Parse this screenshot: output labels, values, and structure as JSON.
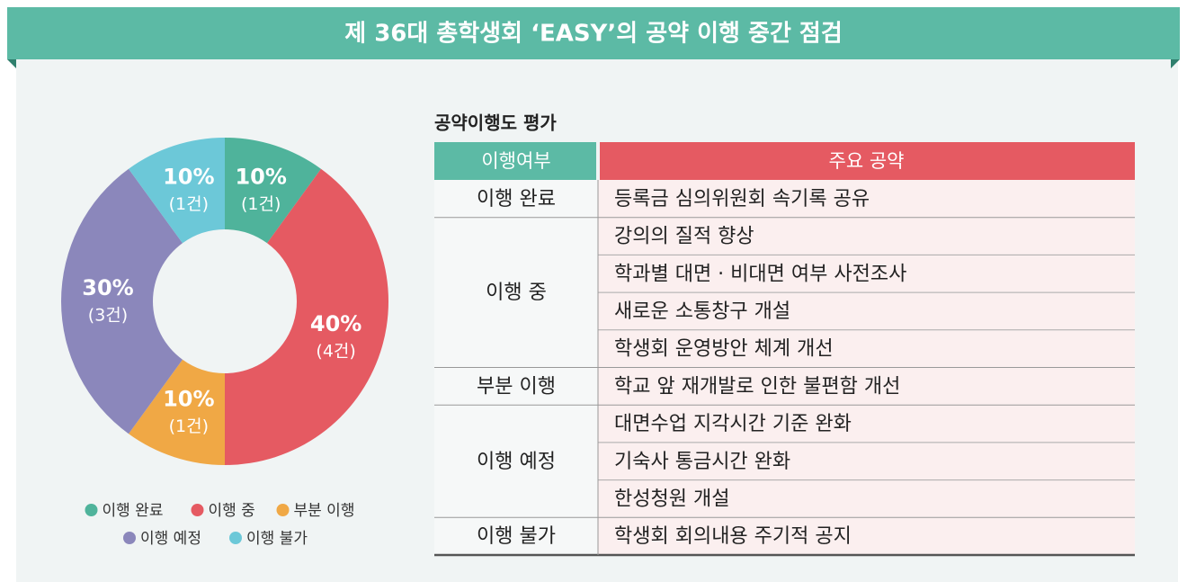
{
  "title": "제 36대 총학생회 ‘EASY’의 공약 이행 중간 점검",
  "chart_data": {
    "type": "donut",
    "categories": [
      "이행 완료",
      "이행 중",
      "부분 이행",
      "이행 예정",
      "이행 불가"
    ],
    "values": [
      10,
      40,
      10,
      30,
      10
    ],
    "value_labels": [
      "10%",
      "40%",
      "10%",
      "30%",
      "10%"
    ],
    "counts": [
      1,
      4,
      1,
      3,
      1
    ],
    "count_labels": [
      "(1건)",
      "(4건)",
      "(1건)",
      "(3건)",
      "(1건)"
    ],
    "colors": [
      "#4fb39b",
      "#e55a62",
      "#f0a845",
      "#8b87bb",
      "#6cc8d8"
    ]
  },
  "table": {
    "title": "공약이행도 평가",
    "header": [
      "이행여부",
      "주요 공약"
    ],
    "groups": [
      {
        "status": "이행 완료",
        "items": [
          "등록금 심의위원회 속기록 공유"
        ]
      },
      {
        "status": "이행 중",
        "items": [
          "강의의 질적 향상",
          "학과별 대면 · 비대면 여부 사전조사",
          "새로운 소통창구 개설",
          "학생회 운영방안 체계 개선"
        ]
      },
      {
        "status": "부분 이행",
        "items": [
          "학교 앞 재개발로 인한 불편함 개선"
        ]
      },
      {
        "status": "이행 예정",
        "items": [
          "대면수업 지각시간 기준 완화",
          "기숙사 통금시간 완화",
          "한성청원 개설"
        ]
      },
      {
        "status": "이행 불가",
        "items": [
          "학생회 회의내용 주기적 공지"
        ]
      }
    ]
  }
}
